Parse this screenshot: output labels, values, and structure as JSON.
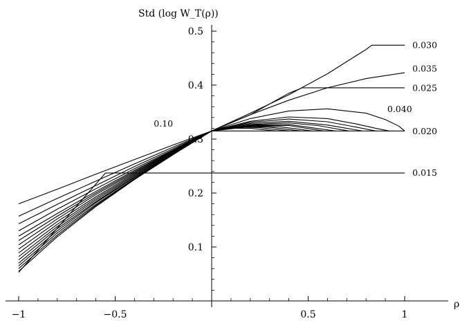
{
  "chart_data": {
    "type": "line",
    "title": "Std  (log  W_T(ρ))",
    "xlabel": "ρ",
    "ylabel": "",
    "xlim": [
      -1.0,
      1.15
    ],
    "ylim": [
      0.0,
      0.5
    ],
    "x_ticks": [
      {
        "value": -1,
        "label": "−1"
      },
      {
        "value": -0.5,
        "label": "−0.5"
      },
      {
        "value": 0.5,
        "label": "0.5"
      },
      {
        "value": 1,
        "label": "1"
      }
    ],
    "y_ticks": [
      {
        "value": 0.1,
        "label": "0.1"
      },
      {
        "value": 0.2,
        "label": "0.2"
      },
      {
        "value": 0.3,
        "label": "0.3"
      },
      {
        "value": 0.4,
        "label": "0.4"
      },
      {
        "value": 0.5,
        "label": "0.5"
      }
    ],
    "annotations": [
      {
        "text": "0.030",
        "x": 1.04,
        "y": 0.474
      },
      {
        "text": "0.035",
        "x": 1.04,
        "y": 0.43
      },
      {
        "text": "0.025",
        "x": 1.04,
        "y": 0.394
      },
      {
        "text": "0.040",
        "x": 0.91,
        "y": 0.355
      },
      {
        "text": "0.020",
        "x": 1.04,
        "y": 0.314
      },
      {
        "text": "0.015",
        "x": 1.04,
        "y": 0.237
      },
      {
        "text": "0.10",
        "x": -0.3,
        "y": 0.328
      }
    ],
    "series": [
      {
        "x": [
          -1,
          -0.55,
          1
        ],
        "y": [
          0.053,
          0.237,
          0.237
        ]
      },
      {
        "x": [
          -1,
          -0.8,
          -0.6,
          -0.4,
          -0.2,
          0,
          1
        ],
        "y": [
          0.18,
          0.207,
          0.235,
          0.262,
          0.289,
          0.315,
          0.315
        ]
      },
      {
        "x": [
          -1,
          -0.8,
          -0.6,
          -0.4,
          -0.2,
          0,
          0.2,
          0.4,
          0.47,
          1
        ],
        "y": [
          0.157,
          0.19,
          0.222,
          0.254,
          0.285,
          0.315,
          0.345,
          0.385,
          0.395,
          0.395
        ]
      },
      {
        "x": [
          -1,
          -0.8,
          -0.6,
          -0.4,
          -0.2,
          0,
          0.2,
          0.4,
          0.6,
          0.8,
          0.83,
          1
        ],
        "y": [
          0.143,
          0.179,
          0.214,
          0.249,
          0.282,
          0.315,
          0.348,
          0.382,
          0.421,
          0.466,
          0.474,
          0.474
        ]
      },
      {
        "x": [
          -1,
          -0.8,
          -0.6,
          -0.4,
          -0.2,
          0,
          0.2,
          0.4,
          0.6,
          0.8,
          1
        ],
        "y": [
          0.13,
          0.17,
          0.208,
          0.245,
          0.28,
          0.315,
          0.345,
          0.372,
          0.395,
          0.412,
          0.423
        ]
      },
      {
        "x": [
          -1,
          -0.8,
          -0.6,
          -0.4,
          -0.2,
          0,
          0.2,
          0.4,
          0.6,
          0.8,
          0.9,
          0.97,
          1
        ],
        "y": [
          0.12,
          0.162,
          0.203,
          0.242,
          0.279,
          0.315,
          0.338,
          0.352,
          0.356,
          0.348,
          0.336,
          0.324,
          0.315
        ]
      },
      {
        "x": [
          -1,
          -0.8,
          -0.6,
          -0.4,
          -0.2,
          0,
          0.2,
          0.4,
          0.6,
          0.75,
          0.85,
          0.92
        ],
        "y": [
          0.112,
          0.157,
          0.2,
          0.24,
          0.278,
          0.315,
          0.333,
          0.341,
          0.338,
          0.328,
          0.32,
          0.315
        ]
      },
      {
        "x": [
          -1,
          -0.8,
          -0.6,
          -0.4,
          -0.2,
          0,
          0.2,
          0.4,
          0.6,
          0.75,
          0.85
        ],
        "y": [
          0.104,
          0.152,
          0.197,
          0.238,
          0.277,
          0.315,
          0.331,
          0.337,
          0.332,
          0.322,
          0.315
        ]
      },
      {
        "x": [
          -1,
          -0.8,
          -0.6,
          -0.4,
          -0.2,
          0,
          0.2,
          0.4,
          0.6,
          0.78
        ],
        "y": [
          0.096,
          0.147,
          0.193,
          0.236,
          0.276,
          0.315,
          0.329,
          0.333,
          0.326,
          0.315
        ]
      },
      {
        "x": [
          -1,
          -0.8,
          -0.6,
          -0.4,
          -0.2,
          0,
          0.2,
          0.4,
          0.55,
          0.71
        ],
        "y": [
          0.089,
          0.142,
          0.19,
          0.234,
          0.275,
          0.315,
          0.327,
          0.33,
          0.325,
          0.315
        ]
      },
      {
        "x": [
          -1,
          -0.8,
          -0.6,
          -0.4,
          -0.2,
          0,
          0.2,
          0.4,
          0.64
        ],
        "y": [
          0.082,
          0.138,
          0.187,
          0.232,
          0.274,
          0.315,
          0.326,
          0.327,
          0.315
        ]
      },
      {
        "x": [
          -1,
          -0.8,
          -0.6,
          -0.4,
          -0.2,
          0,
          0.2,
          0.4,
          0.58
        ],
        "y": [
          0.076,
          0.134,
          0.184,
          0.23,
          0.273,
          0.315,
          0.325,
          0.325,
          0.315
        ]
      },
      {
        "x": [
          -1,
          -0.8,
          -0.6,
          -0.4,
          -0.2,
          0,
          0.2,
          0.35,
          0.52
        ],
        "y": [
          0.07,
          0.13,
          0.182,
          0.229,
          0.273,
          0.315,
          0.324,
          0.323,
          0.315
        ]
      },
      {
        "x": [
          -1,
          -0.8,
          -0.6,
          -0.4,
          -0.2,
          0,
          0.2,
          0.3,
          0.46
        ],
        "y": [
          0.065,
          0.126,
          0.179,
          0.227,
          0.272,
          0.315,
          0.323,
          0.322,
          0.315
        ]
      },
      {
        "x": [
          -1,
          -0.8,
          -0.6,
          -0.4,
          -0.2,
          0,
          0.15,
          0.25,
          0.4
        ],
        "y": [
          0.06,
          0.122,
          0.177,
          0.226,
          0.272,
          0.315,
          0.322,
          0.321,
          0.315
        ]
      },
      {
        "x": [
          -1,
          -0.8,
          -0.6,
          -0.4,
          -0.2,
          0,
          0.1,
          0.2,
          0.33
        ],
        "y": [
          0.055,
          0.119,
          0.175,
          0.225,
          0.271,
          0.315,
          0.32,
          0.32,
          0.315
        ]
      }
    ]
  }
}
